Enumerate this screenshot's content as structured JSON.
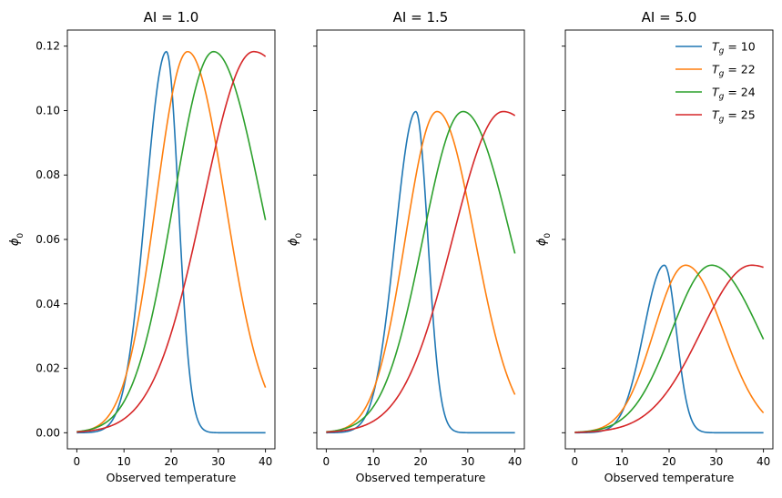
{
  "chart_data": {
    "type": "line",
    "x_range": [
      0,
      40
    ],
    "ylim": [
      -0.005,
      0.125
    ],
    "yticks": [
      0.0,
      0.02,
      0.04,
      0.06,
      0.08,
      0.1,
      0.12
    ],
    "ytick_labels": [
      "0.00",
      "0.02",
      "0.04",
      "0.06",
      "0.08",
      "0.10",
      "0.12"
    ],
    "xticks": [
      0,
      10,
      20,
      30,
      40
    ],
    "xtick_labels": [
      "0",
      "10",
      "20",
      "30",
      "40"
    ],
    "xlabel": "Observed temperature",
    "ylabel": "ϕ",
    "ylabel_sub": "0",
    "grid": false,
    "legend_placement": "top-right of third panel",
    "series": [
      {
        "name": "Tg = 10",
        "legend_sym": "T",
        "legend_sub": "g",
        "legend_rest": " = 10",
        "color": "#1f77b4",
        "peak_x": 19,
        "width_left": 6.2,
        "width_right": 3.6
      },
      {
        "name": "Tg = 22",
        "legend_sym": "T",
        "legend_sub": "g",
        "legend_rest": " = 22",
        "color": "#ff7f0e",
        "peak_x": 23.5,
        "width_left": 9.5,
        "width_right": 11.3
      },
      {
        "name": "Tg = 24",
        "legend_sym": "T",
        "legend_sub": "g",
        "legend_rest": " = 24",
        "color": "#2ca02c",
        "peak_x": 29,
        "width_left": 12,
        "width_right": 14.4
      },
      {
        "name": "Tg = 25",
        "legend_sym": "T",
        "legend_sub": "g",
        "legend_rest": " = 25",
        "color": "#d62728",
        "peak_x": 37.5,
        "width_left": 15.1,
        "width_right": 22
      }
    ],
    "panels": [
      {
        "title": "AI = 1.0",
        "peak_y": 0.1183,
        "show_legend": false,
        "show_ytick_labels": true
      },
      {
        "title": "AI = 1.5",
        "peak_y": 0.0997,
        "show_legend": false,
        "show_ytick_labels": false
      },
      {
        "title": "AI = 5.0",
        "peak_y": 0.052,
        "show_legend": true,
        "show_ytick_labels": false
      }
    ]
  }
}
